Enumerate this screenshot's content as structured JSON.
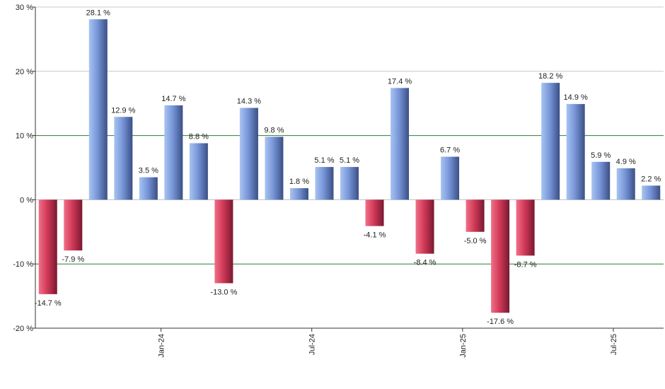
{
  "chart_data": {
    "type": "bar",
    "values": [
      -14.7,
      -7.9,
      28.1,
      12.9,
      3.5,
      14.7,
      8.8,
      -13.0,
      14.3,
      9.8,
      1.8,
      5.1,
      5.1,
      -4.1,
      17.4,
      -8.4,
      6.7,
      -5.0,
      -17.6,
      -8.7,
      18.2,
      14.9,
      5.9,
      4.9,
      2.2
    ],
    "value_labels": [
      "-14.7 %",
      "-7.9 %",
      "28.1 %",
      "12.9 %",
      "3.5 %",
      "14.7 %",
      "8.8 %",
      "-13.0 %",
      "14.3 %",
      "9.8 %",
      "1.8 %",
      "5.1 %",
      "5.1 %",
      "-4.1 %",
      "17.4 %",
      "-8.4 %",
      "6.7 %",
      "-5.0 %",
      "-17.6 %",
      "-8.7 %",
      "18.2 %",
      "14.9 %",
      "5.9 %",
      "4.9 %",
      "2.2 %"
    ],
    "x_ticks": [
      {
        "index": 5,
        "label": "Jan-24"
      },
      {
        "index": 11,
        "label": "Jul-24"
      },
      {
        "index": 17,
        "label": "Jan-25"
      },
      {
        "index": 23,
        "label": "Jul-25"
      }
    ],
    "y_ticks": [
      {
        "value": 30,
        "label": "30 %"
      },
      {
        "value": 20,
        "label": "20 %"
      },
      {
        "value": 10,
        "label": "10 %"
      },
      {
        "value": 0,
        "label": "0 %"
      },
      {
        "value": -10,
        "label": "-10 %"
      },
      {
        "value": -20,
        "label": "-20 %"
      }
    ],
    "ylim": [
      -20,
      30
    ],
    "green_lines": [
      10,
      -10
    ],
    "grid": true,
    "colors": {
      "positive_light": "#a8c4f2",
      "positive_mid": "#7896d8",
      "positive_dark": "#3a4f86",
      "negative_light": "#f07088",
      "negative_mid": "#d23a58",
      "negative_dark": "#7a1830",
      "grid": "#c8c8c8",
      "green_line": "#2e7d32",
      "axis": "#333333"
    }
  }
}
